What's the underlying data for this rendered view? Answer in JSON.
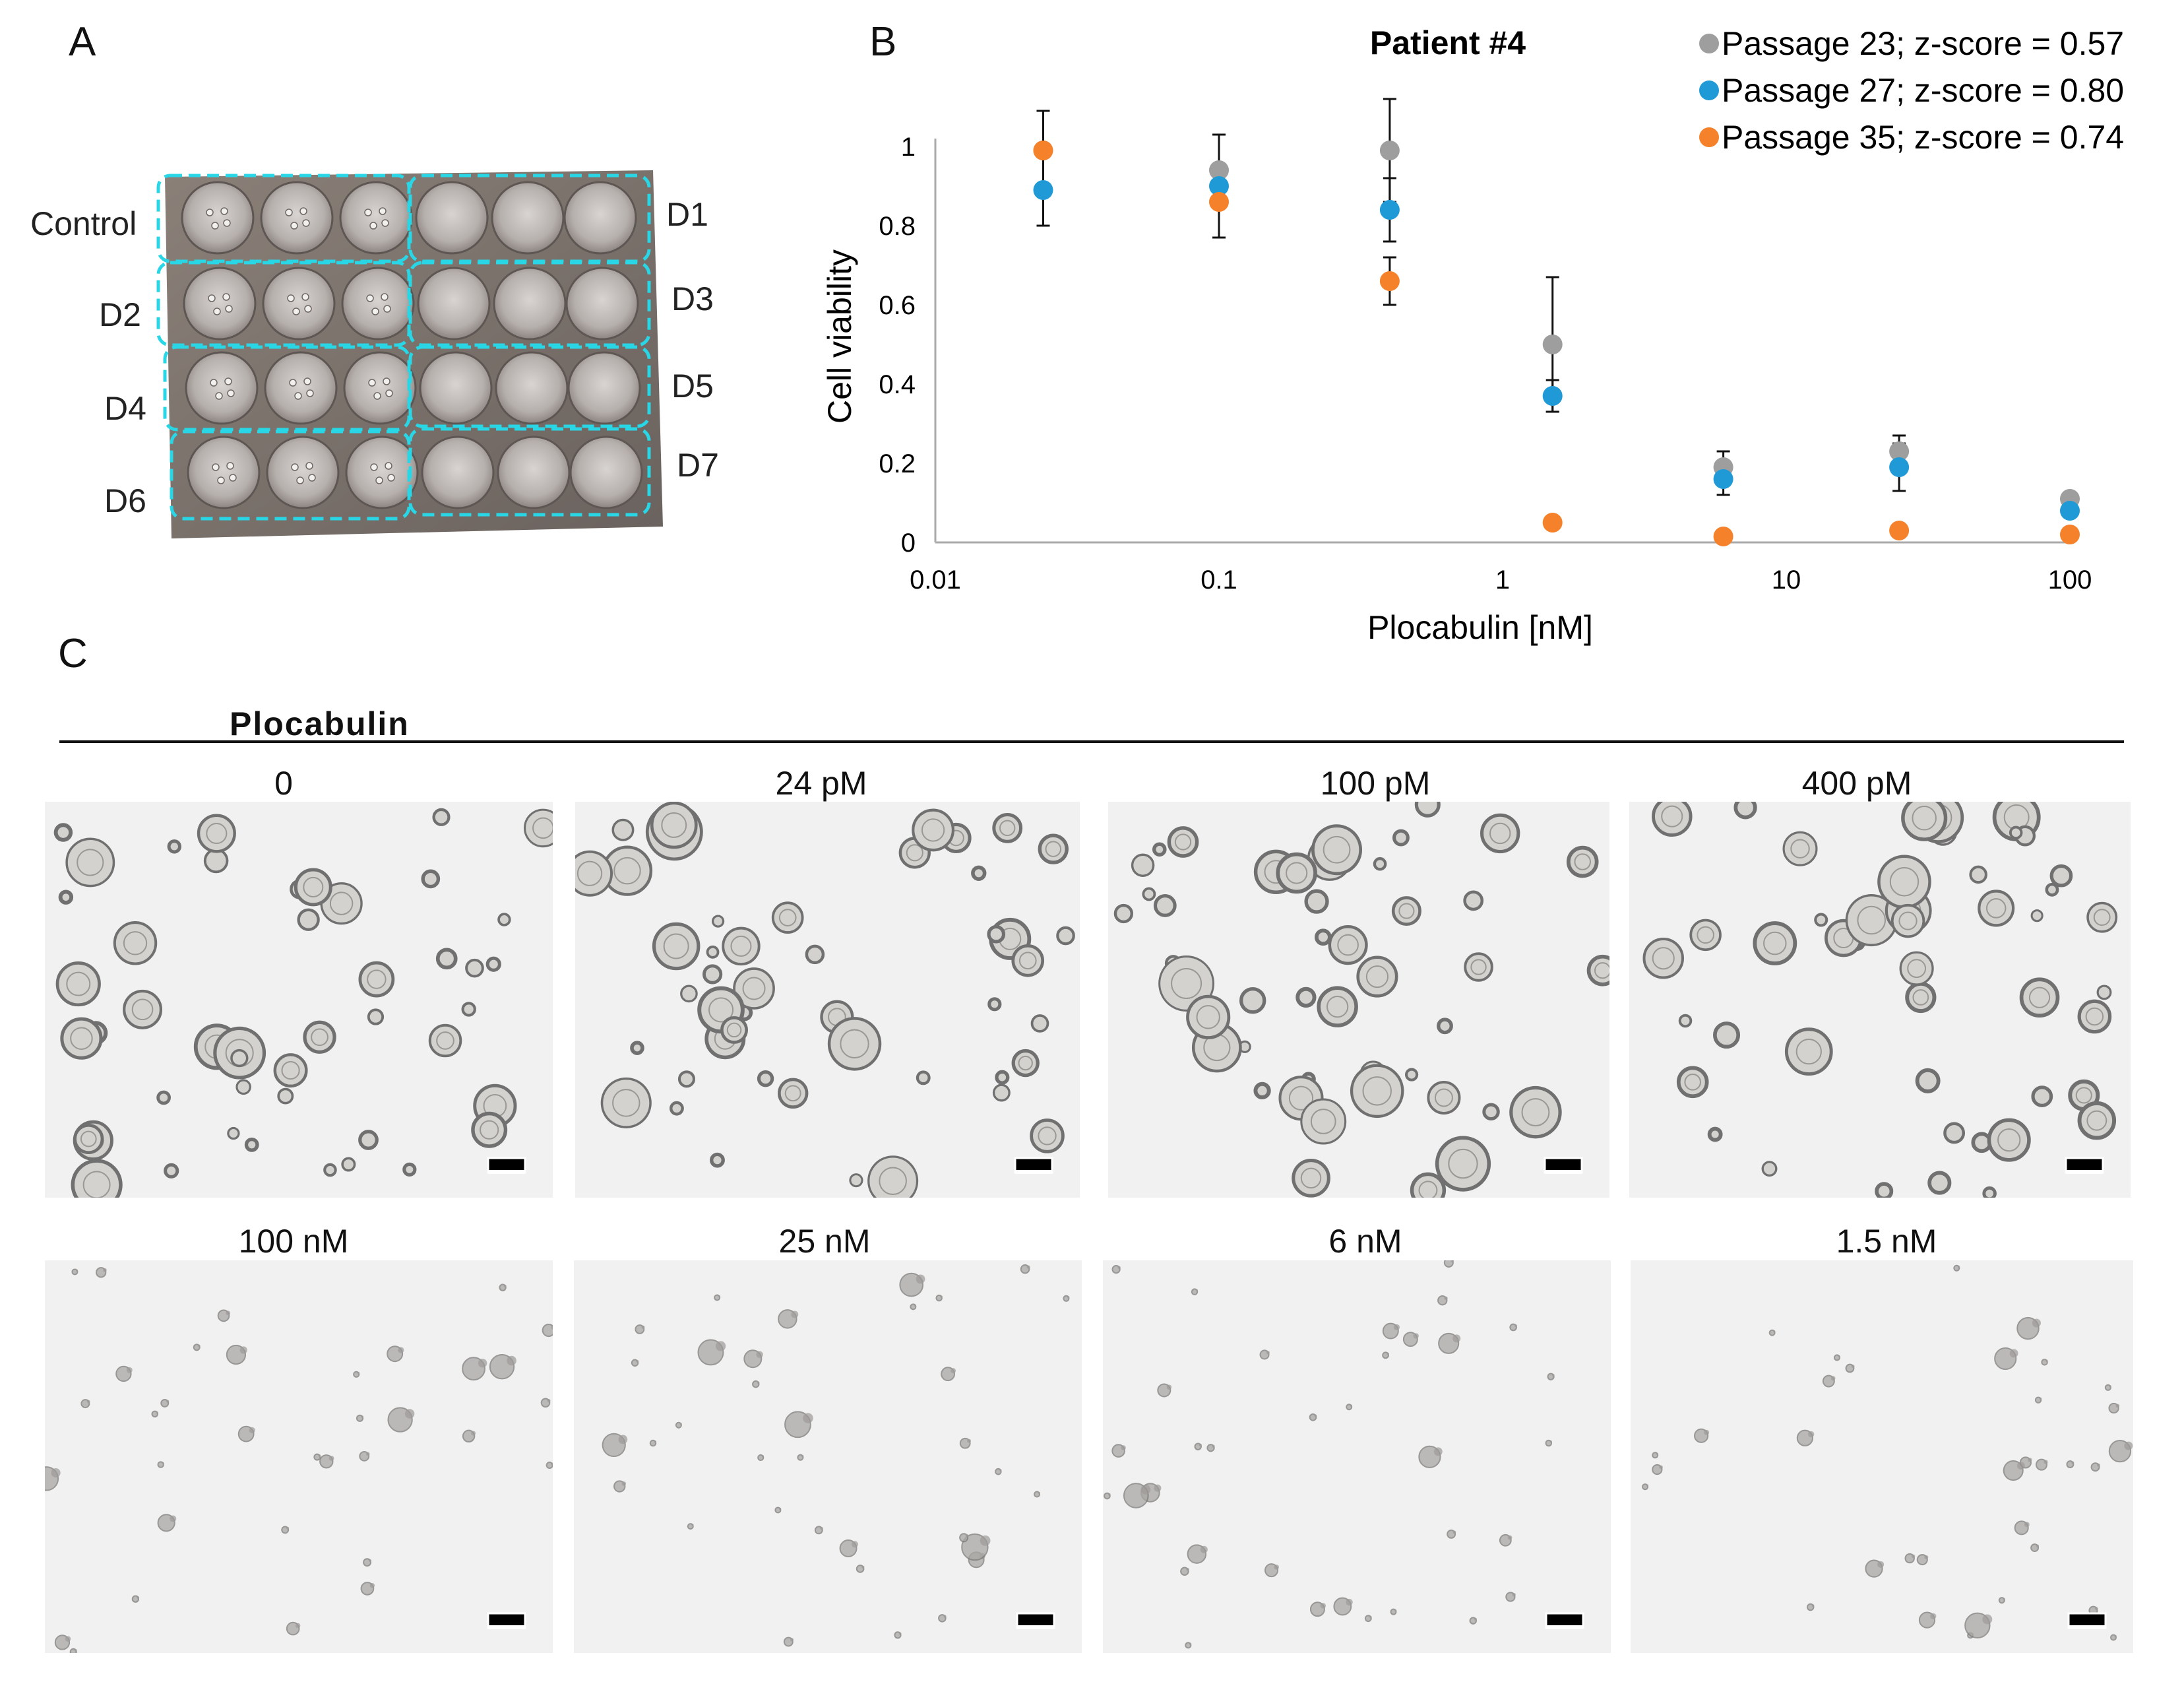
{
  "panels": {
    "a": "A",
    "b": "B",
    "c": "C"
  },
  "plate": {
    "labels_left": [
      "Control",
      "D2",
      "D4",
      "D6"
    ],
    "labels_right": [
      "D1",
      "D3",
      "D5",
      "D7"
    ]
  },
  "colors": {
    "grey": "#9e9e9e",
    "blue": "#1f9ad6",
    "orange": "#f5822a",
    "dashed_outline": "#29d6e6"
  },
  "chart_data": {
    "type": "scatter",
    "title": "Patient #4",
    "xlabel": "Plocabulin [nM]",
    "ylabel": "Cell viability",
    "x_scale": "log",
    "xlim": [
      0.01,
      100
    ],
    "ylim": [
      0,
      1
    ],
    "x_ticks": [
      "0.01",
      "0.1",
      "1",
      "10",
      "100"
    ],
    "y_ticks": [
      "0",
      "0.2",
      "0.4",
      "0.6",
      "0.8",
      "1"
    ],
    "grid": false,
    "legend_position": "top-right",
    "series": [
      {
        "name": "Passage 23; z-score = 0.57",
        "color": "#9e9e9e",
        "x": [
          0.024,
          0.1,
          0.4,
          1.5,
          6,
          25,
          100
        ],
        "y": [
          0.99,
          0.94,
          0.99,
          0.5,
          0.19,
          0.23,
          0.11
        ],
        "err": [
          0.1,
          0.09,
          0.13,
          0.17,
          0.04,
          0.04,
          0
        ]
      },
      {
        "name": "Passage 27; z-score = 0.80",
        "color": "#1f9ad6",
        "x": [
          0.024,
          0.1,
          0.4,
          1.5,
          6,
          25,
          100
        ],
        "y": [
          0.89,
          0.9,
          0.84,
          0.37,
          0.16,
          0.19,
          0.08
        ],
        "err": [
          0.09,
          0.13,
          0.08,
          0.04,
          0.04,
          0.06,
          0
        ]
      },
      {
        "name": "Passage 35; z-score = 0.74",
        "color": "#f5822a",
        "x": [
          0.024,
          0.1,
          0.4,
          1.5,
          6,
          25,
          100
        ],
        "y": [
          0.99,
          0.86,
          0.66,
          0.05,
          0.015,
          0.03,
          0.02
        ],
        "err": [
          0,
          0,
          0.06,
          0,
          0,
          0,
          0
        ]
      }
    ]
  },
  "panel_c": {
    "drug_label": "Plocabulin",
    "row1": [
      "0",
      "24 pM",
      "100 pM",
      "400 pM"
    ],
    "row2": [
      "100 nM",
      "25 nM",
      "6 nM",
      "1.5 nM"
    ]
  }
}
